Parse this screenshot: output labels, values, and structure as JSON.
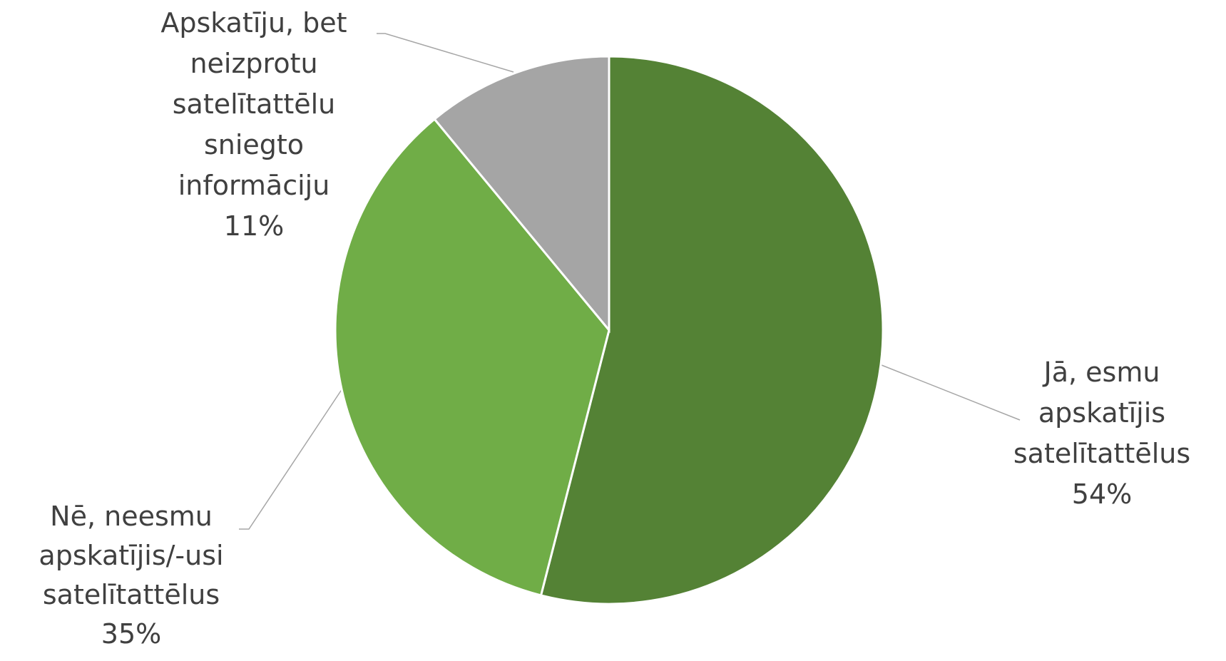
{
  "chart_data": {
    "type": "pie",
    "categories": [
      "Jā, esmu apskatījis satelītattēlus",
      "Nē, neesmu apskatījis/-usi satelītattēlus",
      "Apskatīju, bet neizprotu satelītattēlu sniegto informāciju"
    ],
    "values": [
      54,
      35,
      11
    ],
    "value_labels": [
      "54%",
      "35%",
      "11%"
    ],
    "colors": [
      "#548235",
      "#70ad47",
      "#a5a5a5"
    ]
  }
}
